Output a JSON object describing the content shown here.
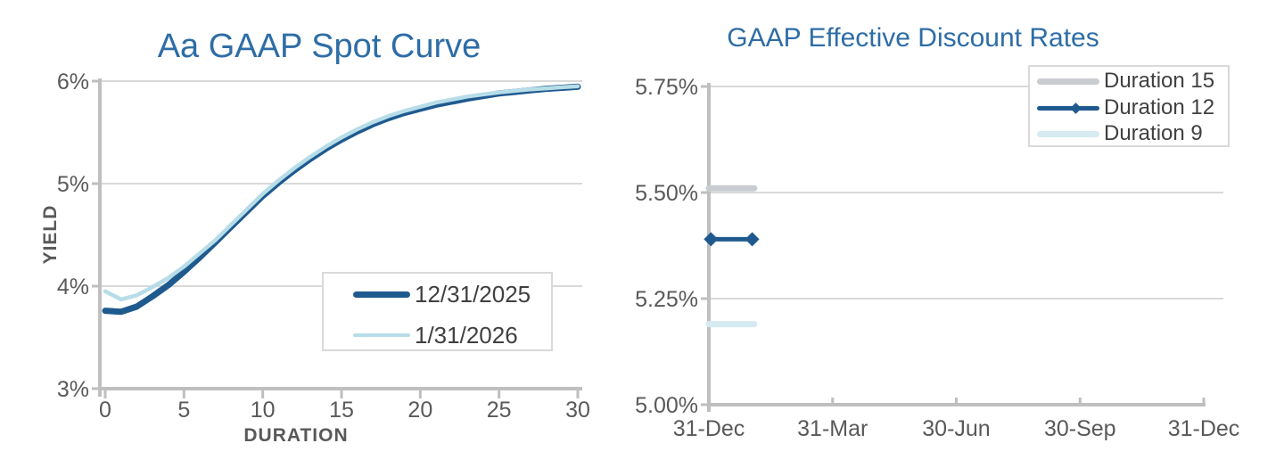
{
  "page": {
    "background": "#FFFFFF"
  },
  "colors": {
    "title": "#2E6DA6",
    "axis": "#BFBFBF",
    "gridline": "#D9D9D9",
    "tick_text": "#595959",
    "legend_text": "#404040"
  },
  "chart_data": [
    {
      "type": "line",
      "title": "Aa GAAP Spot Curve",
      "title_color": "#2E6DA6",
      "xlabel": "DURATION",
      "ylabel": "YIELD",
      "xlim": [
        0,
        30
      ],
      "ylim": [
        3,
        6
      ],
      "grid": "horizontal",
      "legend_position": "inside-bottom-right",
      "x_ticks": {
        "values": [
          0,
          5,
          10,
          15,
          20,
          25,
          30
        ],
        "labels": [
          "0",
          "5",
          "10",
          "15",
          "20",
          "25",
          "30"
        ]
      },
      "y_ticks": {
        "values": [
          3,
          4,
          5,
          6
        ],
        "labels": [
          "3%",
          "4%",
          "5%",
          "6%"
        ]
      },
      "series": [
        {
          "name": "12/31/2025",
          "color": "#1F5A8F",
          "line_width": 7,
          "marker": "none",
          "x": [
            0,
            1,
            2,
            3,
            4,
            5,
            6,
            7,
            8,
            9,
            10,
            11,
            12,
            13,
            14,
            15,
            16,
            17,
            18,
            19,
            20,
            21,
            22,
            23,
            24,
            25,
            26,
            27,
            28,
            29,
            30
          ],
          "values": [
            3.76,
            3.75,
            3.8,
            3.9,
            4.01,
            4.14,
            4.28,
            4.43,
            4.58,
            4.73,
            4.88,
            5.01,
            5.13,
            5.24,
            5.34,
            5.43,
            5.51,
            5.58,
            5.64,
            5.69,
            5.73,
            5.77,
            5.8,
            5.83,
            5.855,
            5.88,
            5.895,
            5.91,
            5.925,
            5.935,
            5.945
          ]
        },
        {
          "name": "1/31/2026",
          "color": "#B7DDE8",
          "line_width": 4.5,
          "marker": "none",
          "x": [
            0,
            1,
            2,
            3,
            4,
            5,
            6,
            7,
            8,
            9,
            10,
            11,
            12,
            13,
            14,
            15,
            16,
            17,
            18,
            19,
            20,
            21,
            22,
            23,
            24,
            25,
            26,
            27,
            28,
            29,
            30
          ],
          "values": [
            3.95,
            3.87,
            3.91,
            3.99,
            4.08,
            4.19,
            4.32,
            4.45,
            4.6,
            4.75,
            4.9,
            5.03,
            5.15,
            5.26,
            5.36,
            5.45,
            5.53,
            5.6,
            5.66,
            5.71,
            5.75,
            5.79,
            5.82,
            5.85,
            5.87,
            5.89,
            5.905,
            5.92,
            5.93,
            5.94,
            5.95
          ]
        }
      ]
    },
    {
      "type": "line",
      "title": "GAAP Effective Discount Rates",
      "title_color": "#2E6DA6",
      "xlabel": "",
      "ylabel": "",
      "x_unit": "months-from-31-Dec",
      "xlim": [
        0,
        12.4
      ],
      "ylim": [
        5.0,
        5.75
      ],
      "grid": "horizontal",
      "legend_position": "inside-top-right",
      "x_ticks": {
        "values": [
          0,
          3,
          6,
          9,
          12
        ],
        "labels": [
          "31-Dec",
          "31-Mar",
          "30-Jun",
          "30-Sep",
          "31-Dec"
        ]
      },
      "y_ticks": {
        "values": [
          5.0,
          5.25,
          5.5,
          5.75
        ],
        "labels": [
          "5.00%",
          "5.25%",
          "5.50%",
          "5.75%"
        ]
      },
      "series": [
        {
          "name": "Duration 15",
          "color": "#C9CDD2",
          "line_width": 7,
          "marker": "none",
          "x": [
            0,
            1.1
          ],
          "values": [
            5.51,
            5.51
          ]
        },
        {
          "name": "Duration 12",
          "color": "#1F5A8F",
          "line_width": 5,
          "marker": "diamond",
          "marker_size": 8,
          "x": [
            0.05,
            1.05
          ],
          "values": [
            5.39,
            5.39
          ]
        },
        {
          "name": "Duration 9",
          "color": "#D6EAF2",
          "line_width": 7,
          "marker": "none",
          "x": [
            0,
            1.1
          ],
          "values": [
            5.19,
            5.19
          ]
        }
      ]
    }
  ]
}
